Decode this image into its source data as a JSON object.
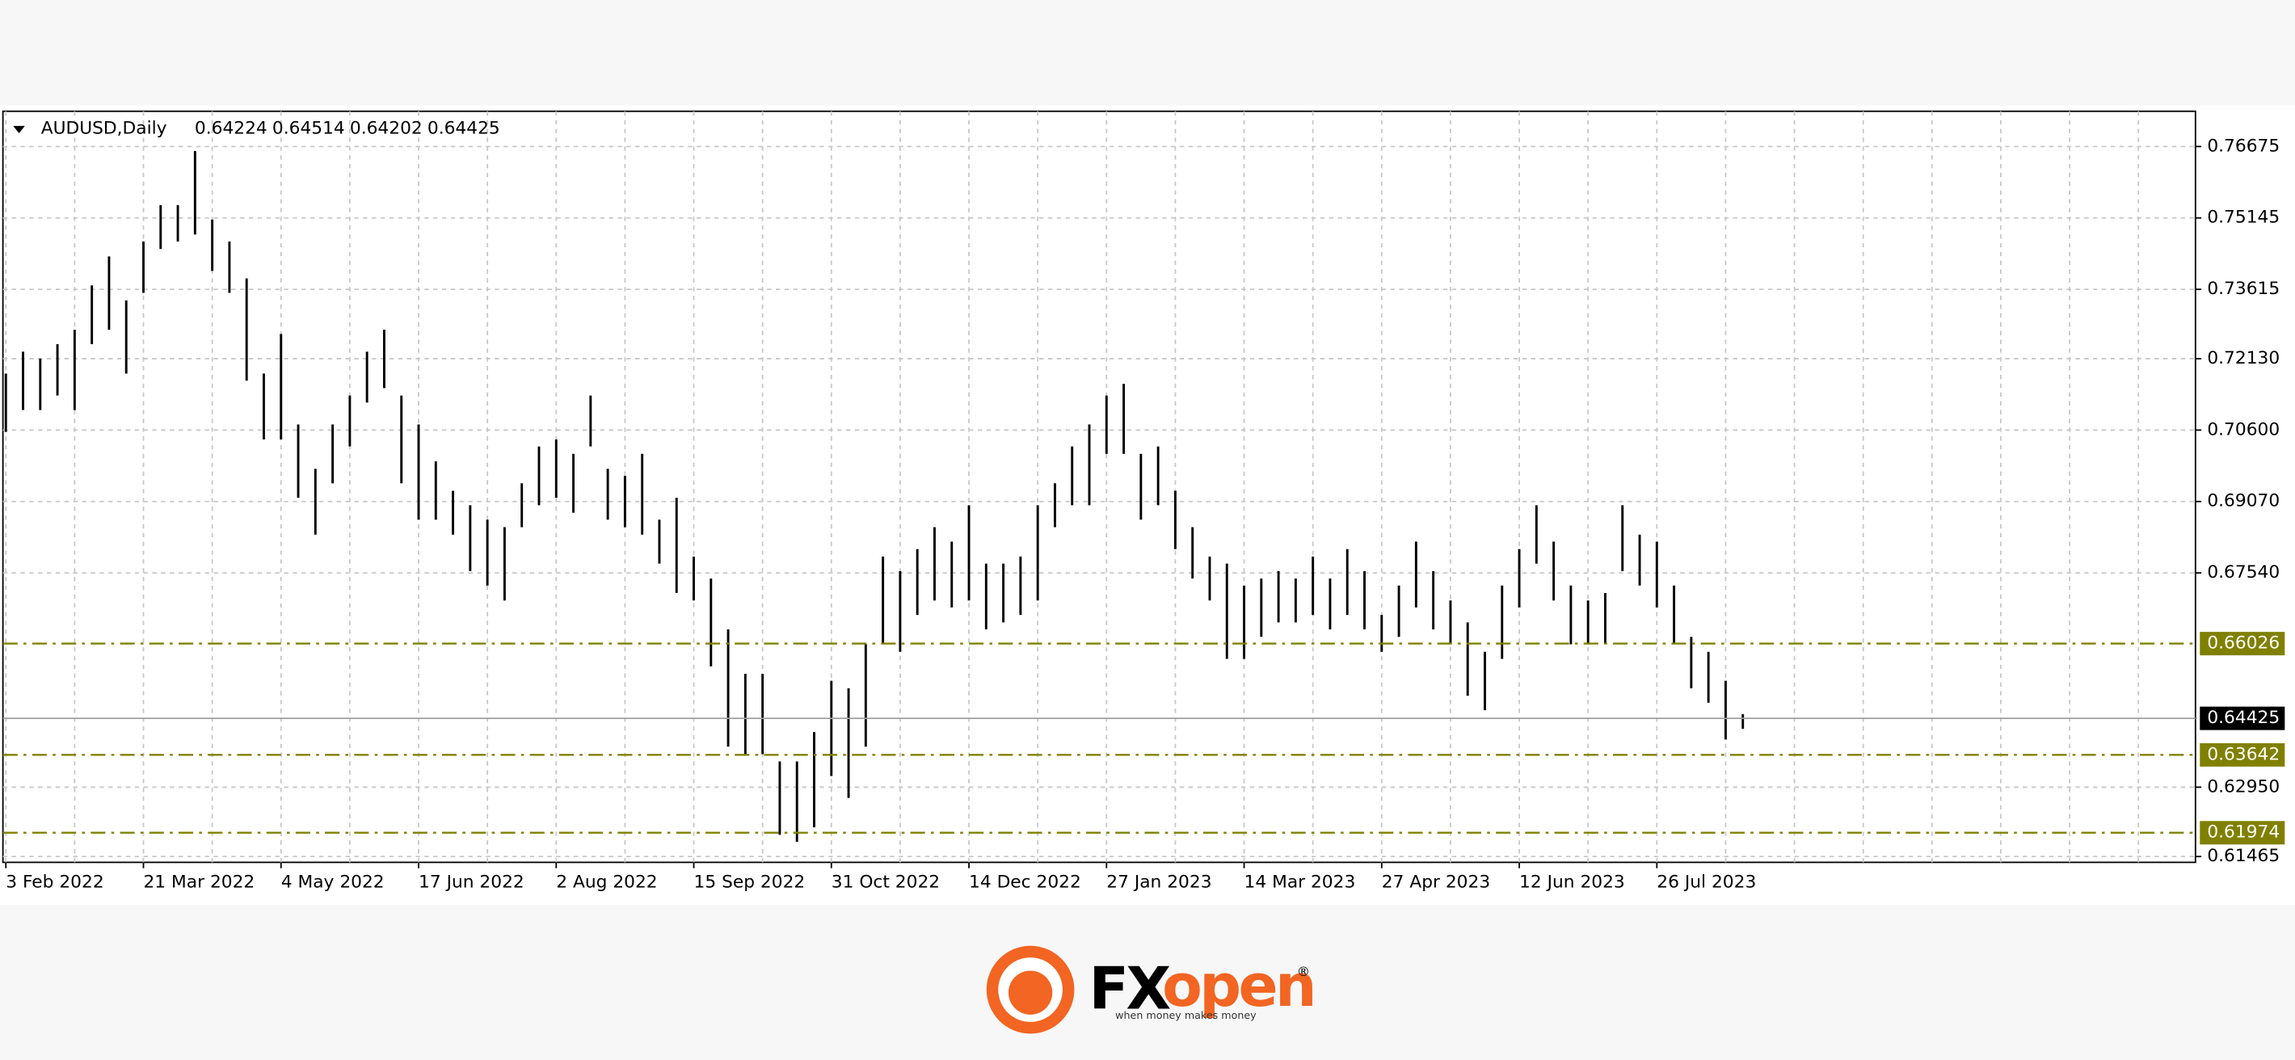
{
  "chart_data": {
    "type": "ohlc",
    "series": [
      {
        "name": "AUDUSD,Daily",
        "color": "#000000",
        "high": [
          0.7181,
          0.7228,
          0.7213,
          0.7244,
          0.7275,
          0.737,
          0.7432,
          0.7338,
          0.7464,
          0.7542,
          0.7542,
          0.7658,
          0.7511,
          0.7464,
          0.7385,
          0.7181,
          0.7266,
          0.7072,
          0.6977,
          0.7072,
          0.7134,
          0.7228,
          0.7275,
          0.7134,
          0.7072,
          0.6993,
          0.693,
          0.6899,
          0.6868,
          0.6852,
          0.6946,
          0.7025,
          0.704,
          0.7009,
          0.7134,
          0.6977,
          0.6962,
          0.7009,
          0.6868,
          0.6915,
          0.6789,
          0.6742,
          0.6633,
          0.6538,
          0.6538,
          0.635,
          0.635,
          0.6413,
          0.6523,
          0.6507,
          0.6601,
          0.6789,
          0.6758,
          0.6805,
          0.6852,
          0.6821,
          0.6899,
          0.6774,
          0.6774,
          0.6789,
          0.6899,
          0.6946,
          0.7025,
          0.7072,
          0.7134,
          0.7159,
          0.7009,
          0.7025,
          0.693,
          0.6852,
          0.6789,
          0.6774,
          0.6727,
          0.6742,
          0.6758,
          0.6742,
          0.6789,
          0.6742,
          0.6805,
          0.6758,
          0.6664,
          0.6727,
          0.6821,
          0.6758,
          0.6695,
          0.6648,
          0.6585,
          0.6727,
          0.6805,
          0.6899,
          0.6821,
          0.6727,
          0.6695,
          0.6711,
          0.6899,
          0.6836,
          0.6821,
          0.6727,
          0.6617,
          0.6585,
          0.6523,
          0.64514
        ],
        "low": [
          0.7056,
          0.7103,
          0.7103,
          0.7134,
          0.7103,
          0.7244,
          0.7275,
          0.7181,
          0.7354,
          0.7448,
          0.7464,
          0.7479,
          0.7401,
          0.7354,
          0.7166,
          0.704,
          0.704,
          0.6915,
          0.6836,
          0.6946,
          0.7025,
          0.7119,
          0.715,
          0.6946,
          0.6868,
          0.6868,
          0.6836,
          0.6758,
          0.6727,
          0.6695,
          0.6852,
          0.6899,
          0.6915,
          0.6883,
          0.7025,
          0.6868,
          0.6852,
          0.6836,
          0.6774,
          0.6711,
          0.6695,
          0.6554,
          0.6382,
          0.6366,
          0.6366,
          0.6193,
          0.6178,
          0.6209,
          0.6319,
          0.6272,
          0.6382,
          0.6601,
          0.6585,
          0.6664,
          0.6695,
          0.668,
          0.6695,
          0.6633,
          0.6648,
          0.6664,
          0.6695,
          0.6852,
          0.6899,
          0.6899,
          0.7009,
          0.7009,
          0.6868,
          0.6899,
          0.6805,
          0.6742,
          0.6695,
          0.657,
          0.657,
          0.6617,
          0.6648,
          0.6648,
          0.6664,
          0.6633,
          0.6664,
          0.6633,
          0.6585,
          0.6617,
          0.668,
          0.6633,
          0.6601,
          0.6491,
          0.646,
          0.657,
          0.668,
          0.6774,
          0.6695,
          0.6601,
          0.6601,
          0.6601,
          0.6758,
          0.6727,
          0.668,
          0.6601,
          0.6507,
          0.6476,
          0.6397,
          0.64202
        ]
      }
    ],
    "last_ohlc": [
      0.64224,
      0.64514,
      0.64202,
      0.64425
    ],
    "xticks": [
      "3 Feb 2022",
      "21 Mar 2022",
      "4 May 2022",
      "17 Jun 2022",
      "2 Aug 2022",
      "15 Sep 2022",
      "31 Oct 2022",
      "14 Dec 2022",
      "27 Jan 2023",
      "14 Mar 2023",
      "27 Apr 2023",
      "12 Jun 2023",
      "26 Jul 2023"
    ],
    "ylim": [
      0.6134,
      0.7743
    ],
    "yticks": [
      0.76675,
      0.75145,
      0.73615,
      {
        "value": 0.7213,
        "label": "0.72130"
      },
      {
        "value": 0.706,
        "label": "0.70600"
      },
      {
        "value": 0.6907,
        "label": "0.69070"
      },
      {
        "value": 0.6754,
        "label": "0.67540"
      },
      {
        "value": 0.6295,
        "label": "0.62950"
      },
      0.61465
    ],
    "levels": [
      {
        "value": 0.66026,
        "color": "#808000"
      },
      {
        "value": 0.63642,
        "color": "#808000"
      },
      {
        "value": 0.61974,
        "color": "#808000"
      }
    ],
    "grid": true
  },
  "logo": {
    "fx": "FX",
    "open": "open",
    "mark": "®",
    "tagline": "when money makes money"
  }
}
